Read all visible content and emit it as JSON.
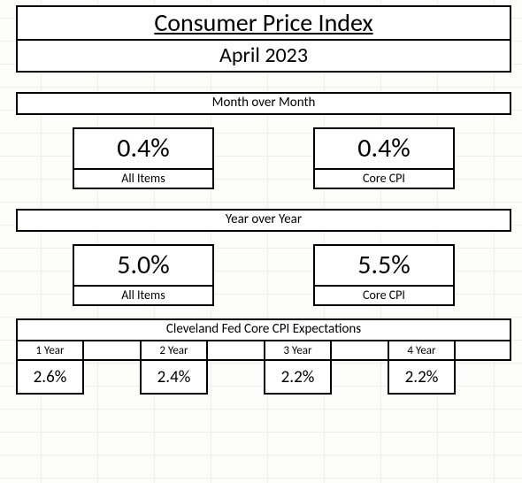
{
  "background_color": "#fcfcfa",
  "gridline_color": "#eeeeee",
  "border_color": "#000000",
  "text_color": "#000000",
  "font_family": "Calibri",
  "title": {
    "main": "Consumer Price Index",
    "main_fontsize": 28,
    "main_underline": true,
    "sub": "April 2023",
    "sub_fontsize": 24
  },
  "month_over_month": {
    "header": "Month over Month",
    "header_fontsize": 15,
    "items": [
      {
        "label": "All Items",
        "value": "0.4%"
      },
      {
        "label": "Core CPI",
        "value": "0.4%"
      }
    ],
    "value_fontsize": 30,
    "label_fontsize": 14
  },
  "year_over_year": {
    "header": "Year over Year",
    "header_fontsize": 15,
    "items": [
      {
        "label": "All Items",
        "value": "5.0%"
      },
      {
        "label": "Core CPI",
        "value": "5.5%"
      }
    ],
    "value_fontsize": 30,
    "label_fontsize": 14
  },
  "expectations": {
    "header": "Cleveland Fed Core CPI Expectations",
    "header_fontsize": 15,
    "columns": [
      {
        "label": "1 Year",
        "value": "2.6%"
      },
      {
        "label": "2 Year",
        "value": "2.4%"
      },
      {
        "label": "3 Year",
        "value": "2.2%"
      },
      {
        "label": "4 Year",
        "value": "2.2%"
      }
    ],
    "label_fontsize": 13,
    "value_fontsize": 19
  }
}
